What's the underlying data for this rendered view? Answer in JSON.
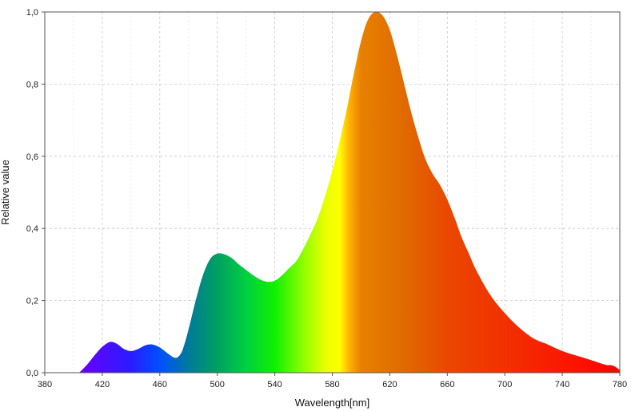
{
  "chart_data": {
    "type": "area",
    "title": "",
    "xlabel": "Wavelength[nm]",
    "ylabel": "Relative value",
    "xlim": [
      380,
      780
    ],
    "ylim": [
      0,
      1.0
    ],
    "grid": true,
    "x_ticks": [
      380,
      420,
      460,
      500,
      540,
      580,
      620,
      660,
      700,
      740,
      780
    ],
    "x_tick_labels": [
      "380",
      "420",
      "460",
      "500",
      "540",
      "580",
      "620",
      "660",
      "700",
      "740",
      "780"
    ],
    "y_ticks": [
      0,
      0.2,
      0.4,
      0.6,
      0.8,
      1.0
    ],
    "y_tick_labels": [
      "0,0",
      "0,2",
      "0,4",
      "0,6",
      "0,8",
      "1,0"
    ],
    "fill": "visible spectrum gradient",
    "colors": {
      "grid": "#c8c8c8",
      "axis": "#555555",
      "stops": [
        {
          "nm": 405,
          "color": "#6a00ff"
        },
        {
          "nm": 440,
          "color": "#2a1cff"
        },
        {
          "nm": 460,
          "color": "#0050ff"
        },
        {
          "nm": 480,
          "color": "#007a9a"
        },
        {
          "nm": 500,
          "color": "#00a060"
        },
        {
          "nm": 520,
          "color": "#00d040"
        },
        {
          "nm": 540,
          "color": "#10f000"
        },
        {
          "nm": 560,
          "color": "#90ff00"
        },
        {
          "nm": 575,
          "color": "#e8ff00"
        },
        {
          "nm": 585,
          "color": "#ffff00"
        },
        {
          "nm": 592,
          "color": "#ffb000"
        },
        {
          "nm": 600,
          "color": "#e88000"
        },
        {
          "nm": 630,
          "color": "#e06a00"
        },
        {
          "nm": 660,
          "color": "#ea4800"
        },
        {
          "nm": 700,
          "color": "#f23000"
        },
        {
          "nm": 740,
          "color": "#fa1800"
        },
        {
          "nm": 780,
          "color": "#ff0000"
        }
      ]
    },
    "series": [
      {
        "x": [
          404,
          410,
          415,
          420,
          425,
          428,
          431,
          435,
          440,
          445,
          450,
          455,
          460,
          465,
          470,
          473,
          476,
          480,
          485,
          490,
          495,
          500,
          505,
          510,
          515,
          520,
          525,
          530,
          535,
          540,
          545,
          550,
          555,
          560,
          565,
          570,
          575,
          580,
          585,
          590,
          595,
          600,
          605,
          610,
          615,
          620,
          625,
          630,
          635,
          640,
          645,
          650,
          655,
          660,
          665,
          670,
          675,
          680,
          690,
          700,
          710,
          720,
          730,
          740,
          750,
          760,
          770,
          775,
          780
        ],
        "y": [
          0.0,
          0.025,
          0.05,
          0.072,
          0.085,
          0.084,
          0.078,
          0.066,
          0.06,
          0.066,
          0.076,
          0.078,
          0.07,
          0.055,
          0.042,
          0.045,
          0.065,
          0.12,
          0.2,
          0.27,
          0.315,
          0.33,
          0.328,
          0.318,
          0.3,
          0.285,
          0.27,
          0.258,
          0.252,
          0.255,
          0.27,
          0.29,
          0.31,
          0.345,
          0.385,
          0.43,
          0.49,
          0.56,
          0.64,
          0.73,
          0.83,
          0.92,
          0.98,
          1.0,
          0.99,
          0.95,
          0.88,
          0.8,
          0.72,
          0.65,
          0.59,
          0.55,
          0.52,
          0.48,
          0.43,
          0.375,
          0.33,
          0.285,
          0.215,
          0.165,
          0.125,
          0.095,
          0.078,
          0.06,
          0.047,
          0.035,
          0.022,
          0.02,
          0.008
        ]
      }
    ]
  }
}
